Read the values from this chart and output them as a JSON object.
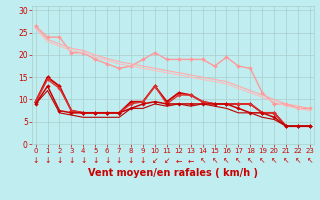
{
  "bg_color": "#c0eef0",
  "grid_color": "#aacccc",
  "xlabel": "Vent moyen/en rafales ( km/h )",
  "xlabel_color": "#cc0000",
  "xlabel_fontsize": 7,
  "tick_color": "#cc0000",
  "yticks": [
    0,
    5,
    10,
    15,
    20,
    25,
    30
  ],
  "xticks": [
    0,
    1,
    2,
    3,
    4,
    5,
    6,
    7,
    8,
    9,
    10,
    11,
    12,
    13,
    14,
    15,
    16,
    17,
    18,
    19,
    20,
    21,
    22,
    23
  ],
  "xlim": [
    -0.3,
    23.3
  ],
  "ylim": [
    0,
    31
  ],
  "series": [
    {
      "x": [
        0,
        1,
        2,
        3,
        4,
        5,
        6,
        7,
        8,
        9,
        10,
        11,
        12,
        13,
        14,
        15,
        16,
        17,
        18,
        19,
        20,
        21,
        22,
        23
      ],
      "y": [
        26.5,
        24,
        24,
        20.5,
        20.5,
        19,
        18,
        17,
        17.5,
        19,
        20.5,
        19,
        19,
        19,
        19,
        17.5,
        19.5,
        17.5,
        17,
        11.5,
        9,
        9,
        8,
        8
      ],
      "color": "#ff9999",
      "lw": 1.0,
      "marker": "D",
      "ms": 2.0
    },
    {
      "x": [
        0,
        1,
        2,
        3,
        4,
        5,
        6,
        7,
        8,
        9,
        10,
        11,
        12,
        13,
        14,
        15,
        16,
        17,
        18,
        19,
        20,
        21,
        22,
        23
      ],
      "y": [
        26.0,
        23.5,
        22.5,
        21.5,
        21.0,
        20.0,
        19.2,
        18.5,
        18.0,
        17.5,
        17.0,
        16.5,
        16.0,
        15.5,
        15.0,
        14.5,
        14.0,
        13.0,
        12.0,
        11.0,
        10.0,
        9.0,
        8.5,
        8.0
      ],
      "color": "#ffaaaa",
      "lw": 0.8,
      "marker": null,
      "ms": 0
    },
    {
      "x": [
        0,
        1,
        2,
        3,
        4,
        5,
        6,
        7,
        8,
        9,
        10,
        11,
        12,
        13,
        14,
        15,
        16,
        17,
        18,
        19,
        20,
        21,
        22,
        23
      ],
      "y": [
        26.0,
        23.0,
        22.0,
        21.0,
        20.5,
        19.5,
        18.8,
        18.0,
        17.5,
        17.0,
        16.5,
        16.0,
        15.5,
        15.0,
        14.5,
        14.0,
        13.5,
        12.5,
        11.5,
        10.5,
        9.5,
        8.5,
        8.0,
        7.5
      ],
      "color": "#ffbbbb",
      "lw": 0.8,
      "marker": null,
      "ms": 0
    },
    {
      "x": [
        0,
        1,
        2,
        3,
        4,
        5,
        6,
        7,
        8,
        9,
        10,
        11,
        12,
        13,
        14,
        15,
        16,
        17,
        18,
        19,
        20,
        21,
        22,
        23
      ],
      "y": [
        9.5,
        15,
        13,
        7.5,
        7,
        7,
        7,
        7,
        9.5,
        9.5,
        13,
        9.5,
        11.5,
        11,
        9.5,
        9,
        9,
        9,
        9,
        7,
        7,
        4,
        4,
        4
      ],
      "color": "#cc0000",
      "lw": 1.3,
      "marker": "D",
      "ms": 2.0
    },
    {
      "x": [
        0,
        1,
        2,
        3,
        4,
        5,
        6,
        7,
        8,
        9,
        10,
        11,
        12,
        13,
        14,
        15,
        16,
        17,
        18,
        19,
        20,
        21,
        22,
        23
      ],
      "y": [
        9.5,
        14.5,
        12.5,
        7.5,
        7,
        7,
        7,
        7,
        9,
        9.5,
        13,
        9,
        11,
        11,
        9.5,
        9,
        9,
        9,
        9,
        7,
        7,
        4,
        4,
        4
      ],
      "color": "#dd3333",
      "lw": 1.0,
      "marker": "D",
      "ms": 1.8
    },
    {
      "x": [
        0,
        1,
        2,
        3,
        4,
        5,
        6,
        7,
        8,
        9,
        10,
        11,
        12,
        13,
        14,
        15,
        16,
        17,
        18,
        19,
        20,
        21,
        22,
        23
      ],
      "y": [
        9,
        13,
        7.5,
        7,
        7,
        7,
        7,
        7,
        8,
        9,
        9.5,
        9,
        9,
        9,
        9,
        9,
        9,
        8,
        7,
        7,
        6,
        4,
        4,
        4
      ],
      "color": "#cc0000",
      "lw": 1.1,
      "marker": "D",
      "ms": 1.8
    },
    {
      "x": [
        0,
        1,
        2,
        3,
        4,
        5,
        6,
        7,
        8,
        9,
        10,
        11,
        12,
        13,
        14,
        15,
        16,
        17,
        18,
        19,
        20,
        21,
        22,
        23
      ],
      "y": [
        9.0,
        12.0,
        7.0,
        6.5,
        6.0,
        6.0,
        6.0,
        6.0,
        8.0,
        8.0,
        9.0,
        8.5,
        9.0,
        8.5,
        9.0,
        8.5,
        8.0,
        7.0,
        7.0,
        6.0,
        5.5,
        4.0,
        4.0,
        4.0
      ],
      "color": "#bb0000",
      "lw": 0.8,
      "marker": null,
      "ms": 0
    }
  ],
  "arrow_color": "#cc0000",
  "arrow_chars": [
    "↓",
    "↓",
    "↓",
    "↓",
    "↓",
    "↓",
    "↓",
    "↓",
    "↓",
    "↓",
    "↙",
    "↙",
    "←",
    "←",
    "↖",
    "↖",
    "↖",
    "↖",
    "↖",
    "↖",
    "↖",
    "↖",
    "↖",
    "↖"
  ]
}
